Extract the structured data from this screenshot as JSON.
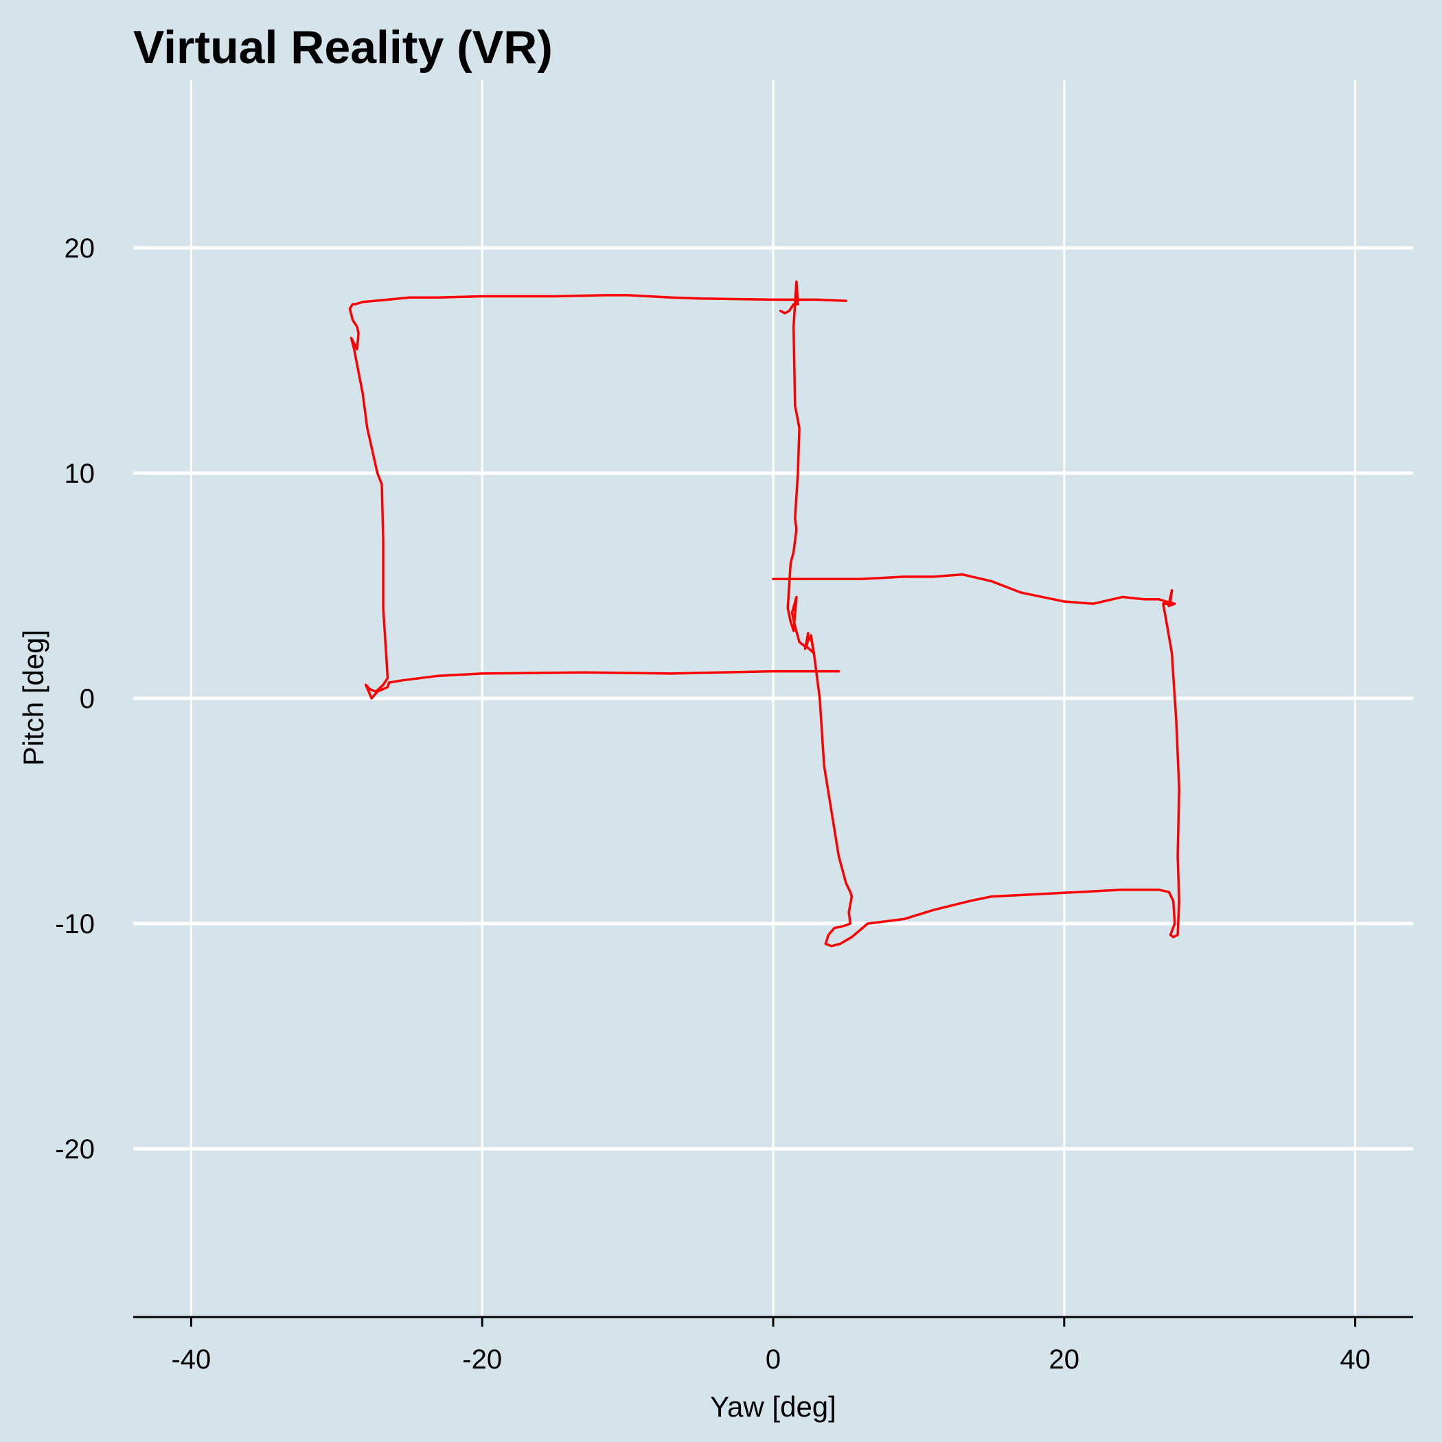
{
  "chart_data": {
    "type": "line",
    "title": "Virtual Reality (VR)",
    "xlabel": "Yaw [deg]",
    "ylabel": "Pitch [deg]",
    "xlim": [
      -44,
      44
    ],
    "ylim": [
      -27.5,
      27.5
    ],
    "xticks": [
      -40,
      -20,
      0,
      20,
      40
    ],
    "xtick_labels": [
      "-40",
      "-20",
      "0",
      "20",
      "40"
    ],
    "yticks": [
      -20,
      -10,
      0,
      10,
      20
    ],
    "ytick_labels": [
      "-20",
      "-10",
      "0",
      "10",
      "20"
    ],
    "grid": true,
    "legend": "none",
    "colors": {
      "background": "#d5e4eb",
      "grid": "#ffffff",
      "axis": "#000000",
      "line": "#ff0000"
    },
    "series": [
      {
        "x": [
          4.5,
          0.0,
          -7.0,
          -13.0,
          -20.0,
          -23.0,
          -25.5,
          -26.4,
          -26.5,
          -27.2,
          -27.6,
          -28.0,
          -27.7,
          -27.3,
          -26.8,
          -26.5,
          -26.6,
          -26.8,
          -26.8,
          -26.9,
          -27.2,
          -27.9,
          -28.2,
          -28.8,
          -29.0,
          -28.6,
          -28.5,
          -28.6,
          -28.9,
          -29.1,
          -28.9,
          -28.7,
          -28.2,
          -26.5,
          -25.0,
          -23.0,
          -20.0,
          -15.0,
          -11.5,
          -10.0,
          -7.0,
          -5.0,
          0.0,
          3.0,
          5.0
        ],
        "y": [
          1.2,
          1.2,
          1.1,
          1.15,
          1.1,
          1.0,
          0.8,
          0.7,
          0.5,
          0.3,
          0.0,
          0.6,
          0.4,
          0.3,
          0.6,
          0.9,
          2.0,
          4.0,
          7.0,
          9.5,
          10.0,
          12.0,
          13.5,
          15.5,
          16.0,
          15.5,
          16.2,
          16.5,
          16.8,
          17.3,
          17.5,
          17.5,
          17.6,
          17.7,
          17.8,
          17.8,
          17.85,
          17.85,
          17.9,
          17.9,
          17.8,
          17.75,
          17.7,
          17.7,
          17.65
        ]
      },
      {
        "x": [
          0.5,
          0.8,
          1.1,
          1.4,
          1.7,
          1.6,
          1.5,
          1.4,
          1.5,
          1.8,
          1.7,
          1.5,
          1.6,
          1.4,
          1.2,
          1.1,
          1.0,
          1.2,
          1.4,
          1.6,
          1.3,
          1.5,
          1.8,
          2.2,
          2.6,
          2.8,
          2.3,
          2.4,
          2.2
        ],
        "y": [
          17.2,
          17.1,
          17.2,
          17.5,
          17.5,
          18.5,
          17.5,
          16.5,
          13.0,
          12.0,
          10.0,
          8.0,
          7.5,
          6.5,
          6.0,
          5.0,
          4.0,
          3.4,
          3.0,
          4.5,
          3.8,
          3.2,
          2.5,
          2.3,
          2.8,
          2.0,
          2.3,
          2.9,
          2.2
        ]
      },
      {
        "x": [
          2.6,
          2.8,
          3.2,
          3.3,
          3.5,
          4.0,
          4.5,
          5.0,
          5.3,
          5.4,
          5.2,
          5.3,
          4.9,
          4.2,
          3.8,
          3.6,
          4.0,
          4.6,
          5.4,
          6.5,
          9.0,
          11.0,
          13.5,
          15.0,
          18.0,
          21.0,
          24.0,
          26.5,
          27.2,
          27.5,
          27.6,
          27.3,
          27.5,
          27.8,
          27.9,
          27.8,
          27.9,
          27.7,
          27.5,
          27.4,
          27.0,
          26.8,
          27.3,
          27.4,
          27.2,
          26.8,
          27.0,
          27.6,
          27.2,
          27.0,
          26.5,
          25.5,
          24.0,
          22.0,
          20.0,
          17.0,
          15.0,
          13.0,
          11.0,
          9.0,
          6.0,
          3.0,
          0.0
        ],
        "y": [
          2.7,
          2.0,
          0.0,
          -1.0,
          -3.0,
          -5.0,
          -7.0,
          -8.2,
          -8.6,
          -8.8,
          -9.5,
          -10.0,
          -10.1,
          -10.2,
          -10.5,
          -10.9,
          -11.0,
          -10.9,
          -10.6,
          -10.0,
          -9.8,
          -9.4,
          -9.0,
          -8.8,
          -8.7,
          -8.6,
          -8.5,
          -8.5,
          -8.6,
          -9.0,
          -10.0,
          -10.5,
          -10.6,
          -10.5,
          -9.0,
          -7.0,
          -4.0,
          -1.0,
          1.0,
          2.0,
          3.5,
          4.2,
          4.3,
          4.8,
          4.2,
          4.2,
          4.3,
          4.2,
          4.1,
          4.3,
          4.4,
          4.4,
          4.5,
          4.2,
          4.3,
          4.7,
          5.2,
          5.5,
          5.4,
          5.4,
          5.3,
          5.3,
          5.3
        ]
      }
    ]
  }
}
